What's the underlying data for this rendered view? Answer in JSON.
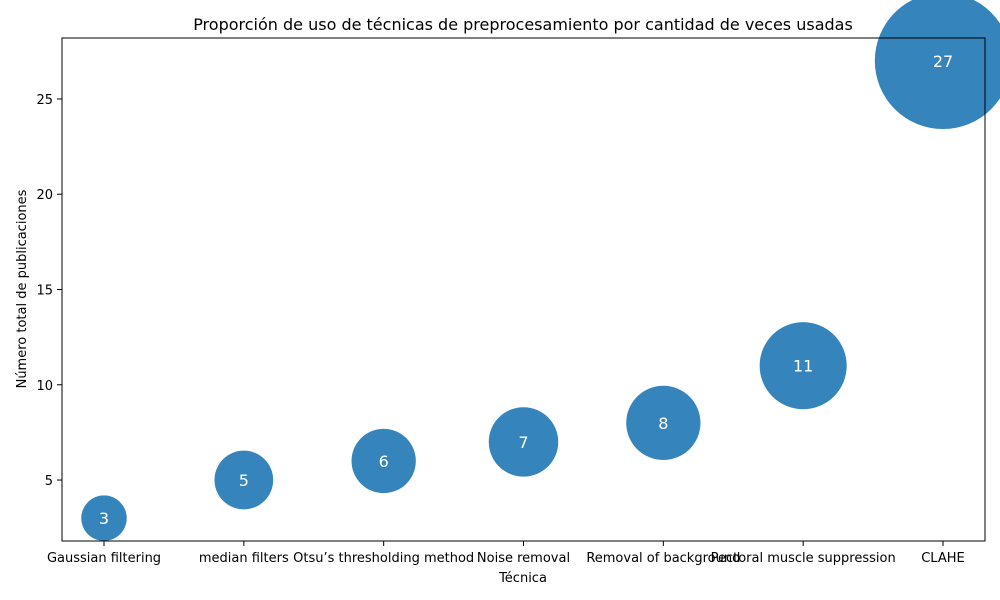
{
  "chart_data": {
    "type": "scatter",
    "title": "Proporción de uso de técnicas de preprocesamiento por cantidad de veces usadas",
    "xlabel": "Técnica",
    "ylabel": "Número total de publicaciones",
    "categories": [
      "Gaussian filtering",
      "median filters",
      "Otsu’s thresholding method",
      "Noise removal",
      "Removal of background",
      "Pectoral muscle suppression",
      "CLAHE"
    ],
    "values": [
      3,
      5,
      6,
      7,
      8,
      11,
      27
    ],
    "point_labels": [
      "3",
      "5",
      "6",
      "7",
      "8",
      "11",
      "27"
    ],
    "bubble_size_encodes": "values",
    "ylim": [
      1.8,
      28.2
    ],
    "yticks": [
      5,
      10,
      15,
      20,
      25
    ],
    "ytick_labels": [
      "5",
      "10",
      "15",
      "20",
      "25"
    ],
    "grid": false,
    "legend": "none",
    "color": "#1f77b4"
  }
}
